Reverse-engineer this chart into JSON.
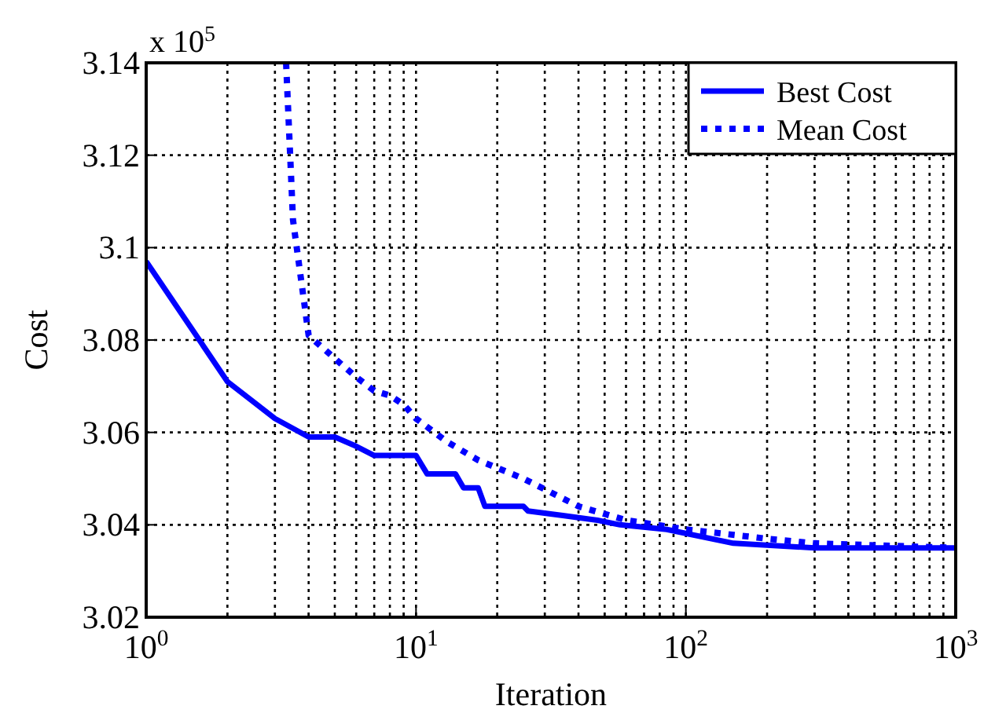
{
  "chart_data": {
    "type": "line",
    "xlabel": "Iteration",
    "ylabel": "Cost",
    "annotations": [
      "x 10$^{5}$"
    ],
    "log": "x",
    "grid": true,
    "legend": "top right",
    "xlim": [
      1,
      1000
    ],
    "ylim": [
      3.02,
      3.14
    ],
    "xticks": [
      {
        "value": 1,
        "label": "10$^{0}$"
      },
      {
        "value": 2,
        "label": null
      },
      {
        "value": 3,
        "label": null
      },
      {
        "value": 4,
        "label": null
      },
      {
        "value": 5,
        "label": null
      },
      {
        "value": 6,
        "label": null
      },
      {
        "value": 7,
        "label": null
      },
      {
        "value": 8,
        "label": null
      },
      {
        "value": 9,
        "label": null
      },
      {
        "value": 10,
        "label": "10$^{1}$"
      },
      {
        "value": 20,
        "label": null
      },
      {
        "value": 30,
        "label": null
      },
      {
        "value": 40,
        "label": null
      },
      {
        "value": 50,
        "label": null
      },
      {
        "value": 60,
        "label": null
      },
      {
        "value": 70,
        "label": null
      },
      {
        "value": 80,
        "label": null
      },
      {
        "value": 90,
        "label": null
      },
      {
        "value": 100,
        "label": "10$^{2}$"
      },
      {
        "value": 200,
        "label": null
      },
      {
        "value": 300,
        "label": null
      },
      {
        "value": 400,
        "label": null
      },
      {
        "value": 500,
        "label": null
      },
      {
        "value": 600,
        "label": null
      },
      {
        "value": 700,
        "label": null
      },
      {
        "value": 800,
        "label": null
      },
      {
        "value": 900,
        "label": null
      },
      {
        "value": 1000,
        "label": "10$^{3}$"
      }
    ],
    "yticks": [
      3.02,
      3.04,
      3.06,
      3.08,
      3.1,
      3.12,
      3.14
    ],
    "series": [
      {
        "name": "Best Cost",
        "color": "#0000ff",
        "line_style": "solid",
        "x": [
          1,
          2,
          3,
          4,
          5,
          6,
          7,
          10,
          11,
          14,
          15,
          17,
          18,
          25,
          26,
          35,
          47,
          57,
          85,
          150,
          300,
          1000
        ],
        "values": [
          3.097,
          3.071,
          3.063,
          3.059,
          3.059,
          3.057,
          3.055,
          3.055,
          3.051,
          3.051,
          3.048,
          3.048,
          3.044,
          3.044,
          3.043,
          3.042,
          3.041,
          3.04,
          3.039,
          3.036,
          3.035,
          3.035
        ]
      },
      {
        "name": "Mean Cost",
        "color": "#0000ff",
        "line_style": "dotted",
        "x": [
          3.3,
          3.5,
          4,
          5,
          6,
          7,
          8,
          9,
          10,
          13,
          17,
          25,
          40,
          60,
          100,
          200,
          300,
          1000
        ],
        "values": [
          3.14,
          3.106,
          3.081,
          3.076,
          3.072,
          3.069,
          3.068,
          3.066,
          3.063,
          3.058,
          3.054,
          3.05,
          3.044,
          3.041,
          3.039,
          3.037,
          3.036,
          3.035
        ]
      }
    ]
  }
}
